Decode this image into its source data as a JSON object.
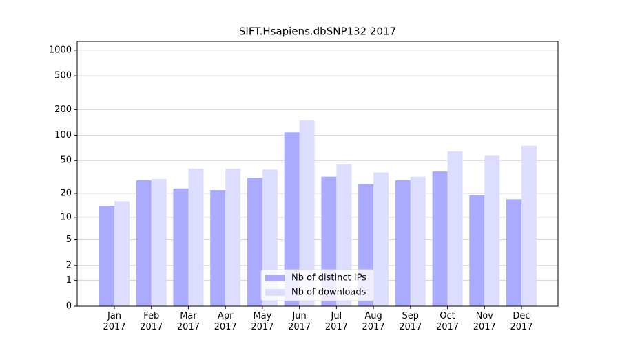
{
  "chart_data": {
    "type": "bar",
    "title": "SIFT.Hsapiens.dbSNP132 2017",
    "yscale": "log1p",
    "grid": true,
    "legend": "lower center",
    "categories": [
      "Jan\n2017",
      "Feb\n2017",
      "Mar\n2017",
      "Apr\n2017",
      "May\n2017",
      "Jun\n2017",
      "Jul\n2017",
      "Aug\n2017",
      "Sep\n2017",
      "Oct\n2017",
      "Nov\n2017",
      "Dec\n2017"
    ],
    "series": [
      {
        "name": "Nb of distinct IPs",
        "color": "#aaaaff",
        "values": [
          14,
          29,
          23,
          22,
          31,
          108,
          32,
          26,
          29,
          37,
          19,
          17
        ]
      },
      {
        "name": "Nb of downloads",
        "color": "#ddddff",
        "values": [
          16,
          30,
          40,
          40,
          39,
          149,
          45,
          36,
          32,
          64,
          57,
          75
        ]
      }
    ],
    "ylim": [
      0,
      1270
    ],
    "yticks": [
      0,
      1,
      2,
      5,
      10,
      20,
      50,
      100,
      200,
      500,
      1000
    ]
  }
}
